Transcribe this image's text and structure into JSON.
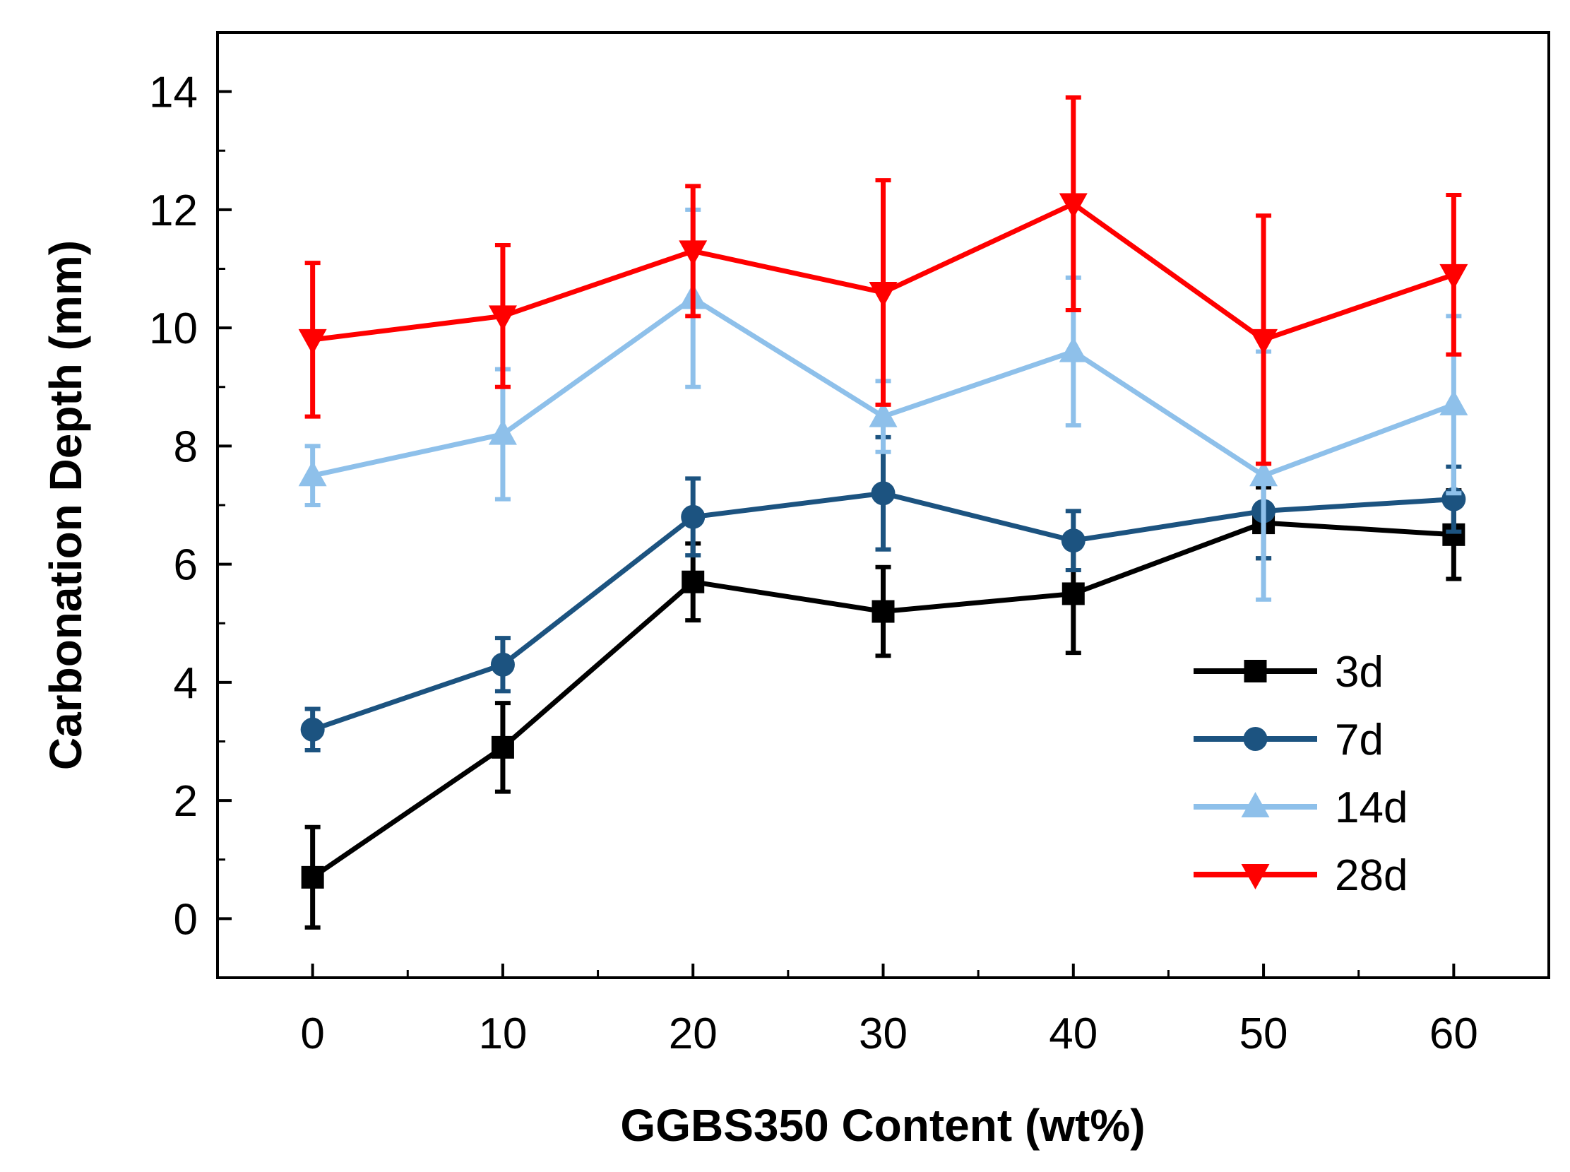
{
  "chart_data": {
    "type": "line",
    "title": "",
    "xlabel": "GGBS350 Content (wt%)",
    "ylabel": "Carbonation Depth (mm)",
    "xlim": [
      -5,
      65
    ],
    "ylim": [
      -1,
      15
    ],
    "x": [
      0,
      10,
      20,
      30,
      40,
      50,
      60
    ],
    "xticks": [
      0,
      10,
      20,
      30,
      40,
      50,
      60
    ],
    "yticks": [
      0,
      2,
      4,
      6,
      8,
      10,
      12,
      14
    ],
    "legend_position": "bottom-right",
    "grid": false,
    "series": [
      {
        "name": "3d",
        "color": "#000000",
        "marker": "square",
        "values": [
          0.7,
          2.9,
          5.7,
          5.2,
          5.5,
          6.7,
          6.5
        ],
        "errors": [
          0.85,
          0.75,
          0.65,
          0.75,
          1.0,
          0.6,
          0.75
        ]
      },
      {
        "name": "7d",
        "color": "#1c5380",
        "marker": "circle",
        "values": [
          3.2,
          4.3,
          6.8,
          7.2,
          6.4,
          6.9,
          7.1
        ],
        "errors": [
          0.35,
          0.45,
          0.65,
          0.95,
          0.5,
          0.8,
          0.55
        ]
      },
      {
        "name": "14d",
        "color": "#8ec0ea",
        "marker": "triangle-up",
        "values": [
          7.5,
          8.2,
          10.5,
          8.5,
          9.6,
          7.5,
          8.7
        ],
        "errors": [
          0.5,
          1.1,
          1.5,
          0.6,
          1.25,
          2.1,
          1.5
        ]
      },
      {
        "name": "28d",
        "color": "#ff0000",
        "marker": "triangle-down",
        "values": [
          9.8,
          10.2,
          11.3,
          10.6,
          12.1,
          9.8,
          10.9
        ],
        "errors": [
          1.3,
          1.2,
          1.1,
          1.9,
          1.8,
          2.1,
          1.35
        ]
      }
    ]
  }
}
